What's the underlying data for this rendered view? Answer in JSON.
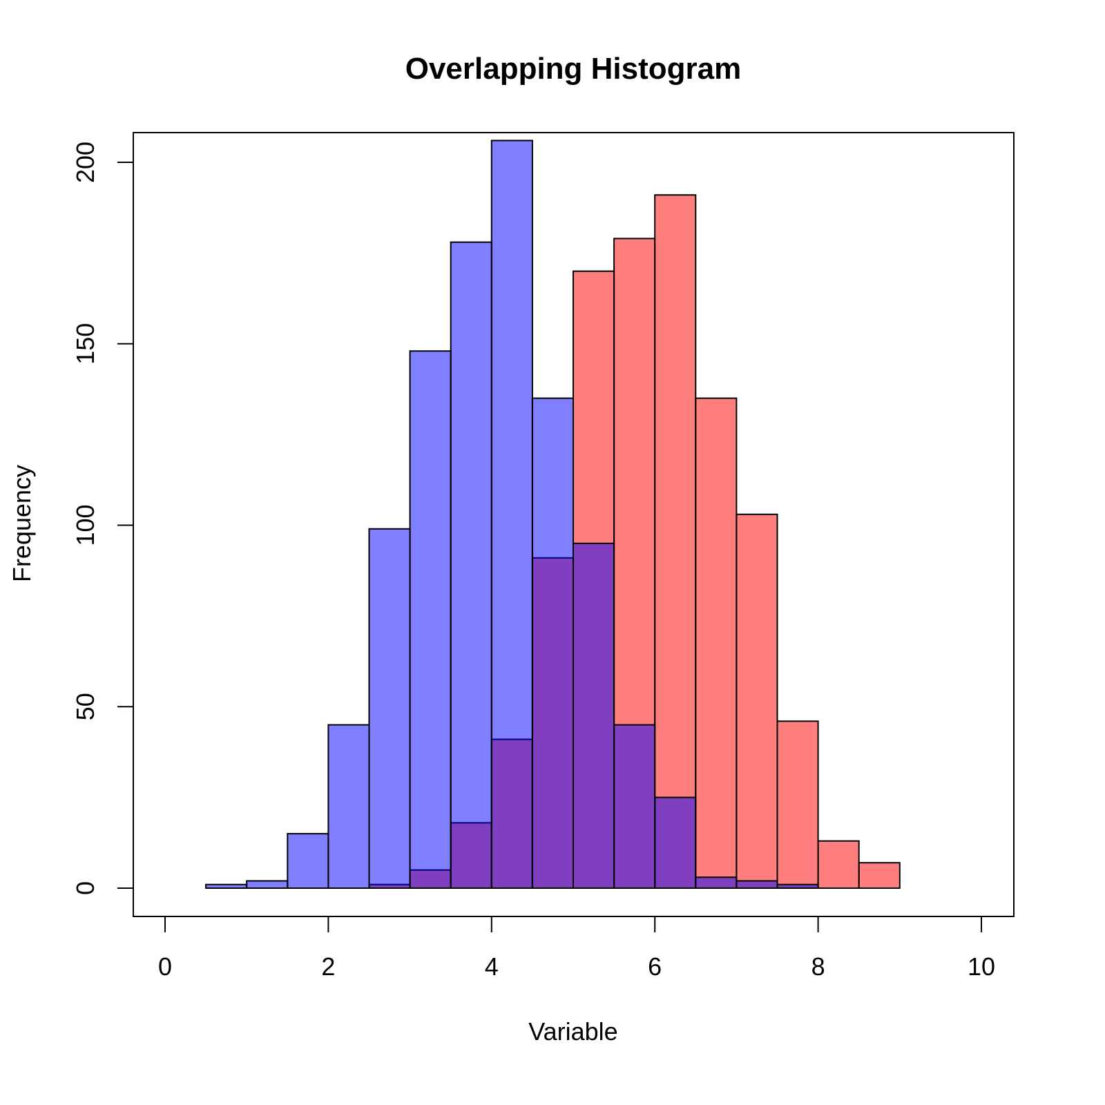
{
  "chart_data": {
    "type": "bar",
    "title": "Overlapping Histogram",
    "xlabel": "Variable",
    "ylabel": "Frequency",
    "xlim": [
      0,
      10
    ],
    "ylim": [
      0,
      200
    ],
    "xticks": [
      "0",
      "2",
      "4",
      "6",
      "8",
      "10"
    ],
    "yticks": [
      "0",
      "50",
      "100",
      "150",
      "200"
    ],
    "grid": false,
    "series": [
      {
        "color": "#FF0000",
        "alpha": 0.5,
        "bin_edges": [
          2.5,
          3,
          3.5,
          4,
          4.5,
          5,
          5.5,
          6,
          6.5,
          7,
          7.5,
          8,
          8.5,
          9
        ],
        "values": [
          1,
          5,
          18,
          41,
          91,
          170,
          179,
          191,
          135,
          103,
          46,
          13,
          7
        ]
      },
      {
        "color": "#0000FF",
        "alpha": 0.5,
        "bin_edges": [
          0.5,
          1,
          1.5,
          2,
          2.5,
          3,
          3.5,
          4,
          4.5,
          5,
          5.5,
          6,
          6.5,
          7,
          7.5,
          8
        ],
        "values": [
          1,
          2,
          15,
          45,
          99,
          148,
          178,
          206,
          135,
          95,
          45,
          25,
          3,
          2,
          1
        ]
      }
    ]
  }
}
